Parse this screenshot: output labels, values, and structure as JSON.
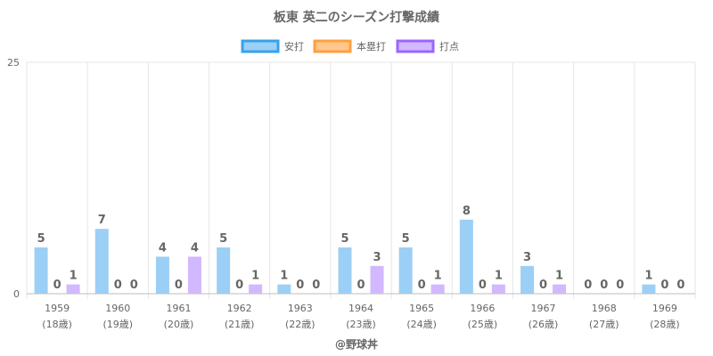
{
  "chart_data": {
    "type": "bar",
    "title": "板東 英二のシーズン打撃成績",
    "categories": [
      "1959",
      "1960",
      "1961",
      "1962",
      "1963",
      "1964",
      "1965",
      "1966",
      "1967",
      "1968",
      "1969"
    ],
    "sub_labels": [
      "(18歳)",
      "(19歳)",
      "(20歳)",
      "(21歳)",
      "(22歳)",
      "(23歳)",
      "(24歳)",
      "(25歳)",
      "(26歳)",
      "(27歳)",
      "(28歳)"
    ],
    "series": [
      {
        "name": "安打",
        "values": [
          5,
          7,
          4,
          5,
          1,
          5,
          5,
          8,
          3,
          0,
          1
        ],
        "fill": "#9ccff5",
        "stroke": "#36a2eb"
      },
      {
        "name": "本塁打",
        "values": [
          0,
          0,
          0,
          0,
          0,
          0,
          0,
          0,
          0,
          0,
          0
        ],
        "fill": "#ffc78c",
        "stroke": "#ff9f40"
      },
      {
        "name": "打点",
        "values": [
          1,
          0,
          4,
          1,
          0,
          3,
          1,
          1,
          1,
          0,
          0
        ],
        "fill": "#d2b8ff",
        "stroke": "#9966ff"
      }
    ],
    "ylim": [
      0,
      25
    ],
    "yticks": [
      "0",
      "25"
    ],
    "legend_position": "top-center",
    "credit": "@野球丼"
  }
}
